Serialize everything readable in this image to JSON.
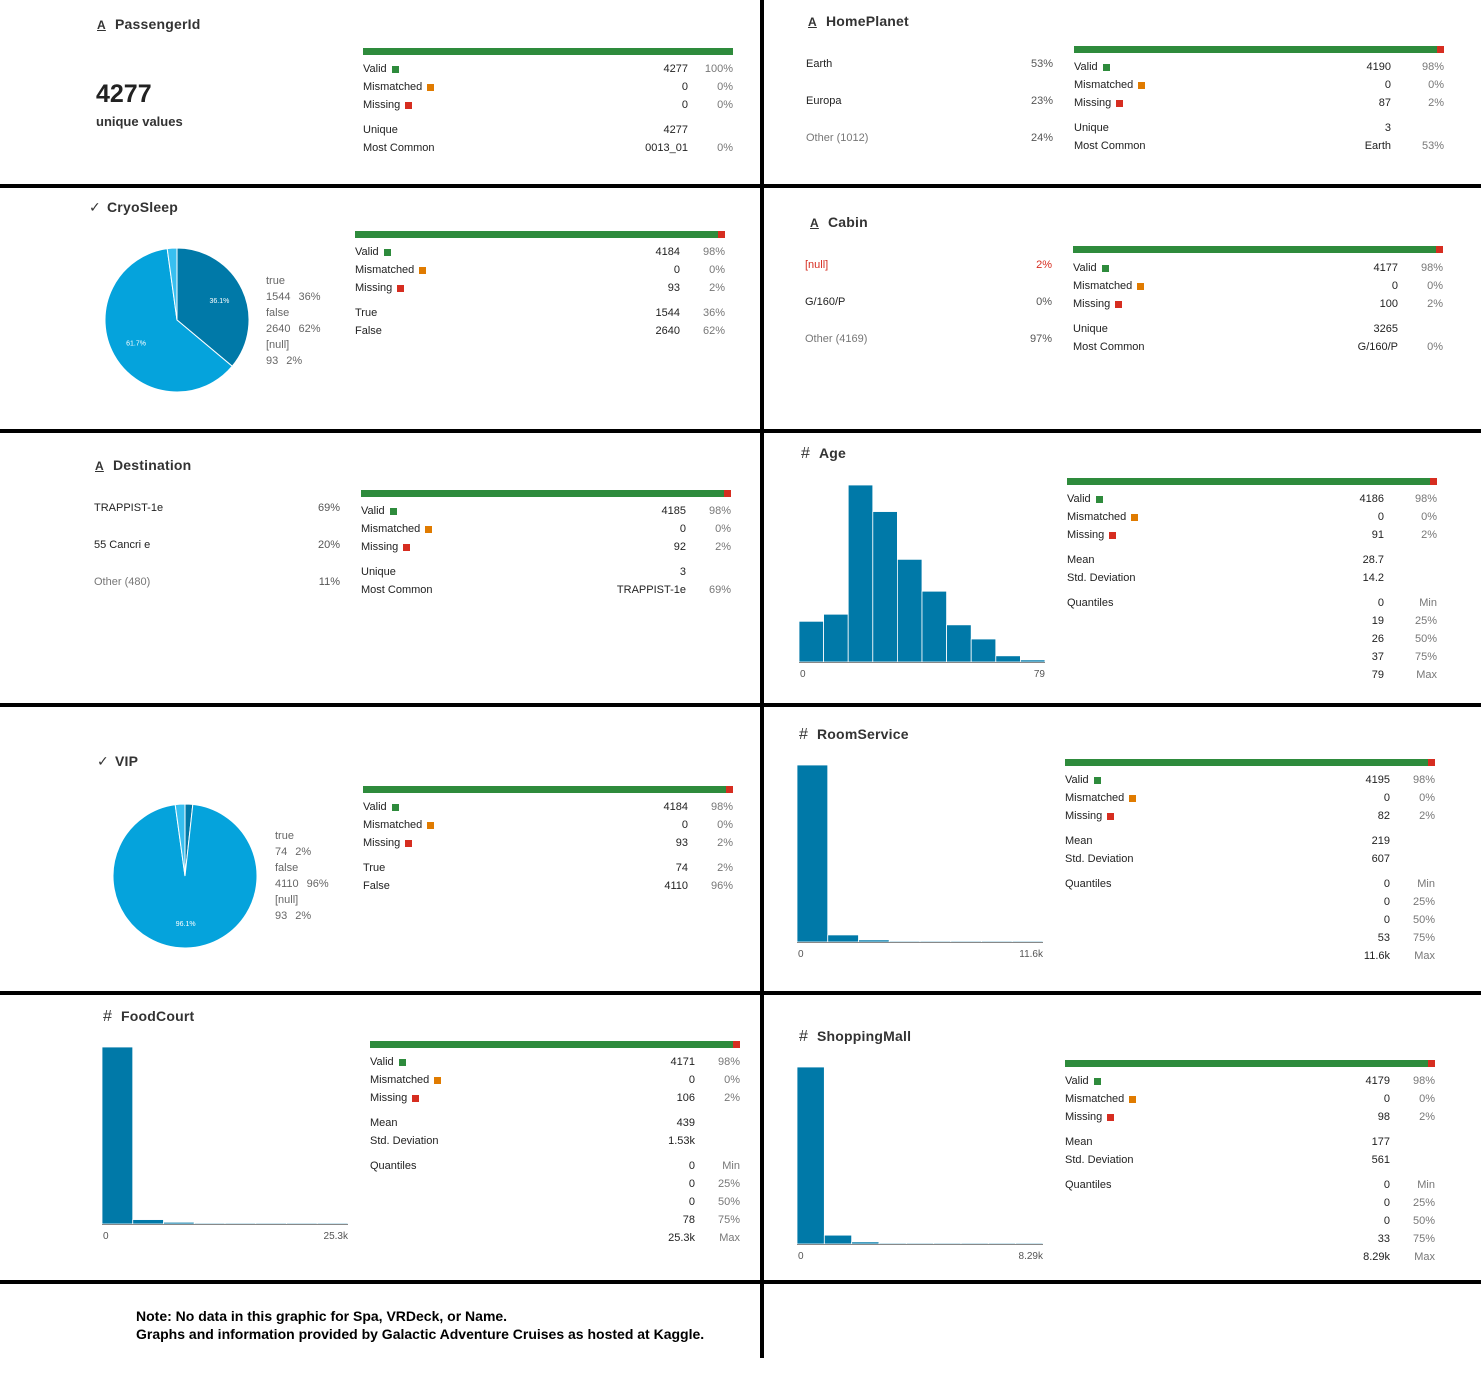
{
  "note": {
    "line1": "Note: No data in this graphic for Spa, VRDeck, or Name.",
    "line2": "Graphs and information provided by Galactic Adventure Cruises as hosted at Kaggle."
  },
  "colors": {
    "valid": "#2e8b3c",
    "mismatched": "#e07b00",
    "missing": "#d62d20",
    "bar": "#0079a8",
    "pie_main": "#05a3dc",
    "pie_dark": "#0079a8",
    "pie_null": "#38bff0"
  },
  "passengerid": {
    "title": "PassengerId",
    "icon": "string-icon",
    "unique_count": "4277",
    "unique_label": "unique values",
    "valid": {
      "label": "Valid",
      "value": "4277",
      "pct": "100%"
    },
    "mismatched": {
      "label": "Mismatched",
      "value": "0",
      "pct": "0%"
    },
    "missing": {
      "label": "Missing",
      "value": "0",
      "pct": "0%"
    },
    "unique": {
      "label": "Unique",
      "value": "4277"
    },
    "most_common": {
      "label": "Most Common",
      "value": "0013_01",
      "pct": "0%"
    },
    "missing_fraction": 0
  },
  "homeplanet": {
    "title": "HomePlanet",
    "icon": "string-icon",
    "categories": [
      {
        "label": "Earth",
        "pct": "53%"
      },
      {
        "label": "Europa",
        "pct": "23%"
      },
      {
        "label": "Other (1012)",
        "pct": "24%"
      }
    ],
    "valid": {
      "label": "Valid",
      "value": "4190",
      "pct": "98%"
    },
    "mismatched": {
      "label": "Mismatched",
      "value": "0",
      "pct": "0%"
    },
    "missing": {
      "label": "Missing",
      "value": "87",
      "pct": "2%"
    },
    "unique": {
      "label": "Unique",
      "value": "3"
    },
    "most_common": {
      "label": "Most Common",
      "value": "Earth",
      "pct": "53%"
    },
    "missing_fraction": 0.02
  },
  "cryosleep": {
    "title": "CryoSleep",
    "icon": "boolean-icon",
    "legend": [
      {
        "label": "true",
        "count": "1544",
        "pct": "36%"
      },
      {
        "label": "false",
        "count": "2640",
        "pct": "62%"
      },
      {
        "label": "[null]",
        "count": "93",
        "pct": "2%"
      }
    ],
    "valid": {
      "label": "Valid",
      "value": "4184",
      "pct": "98%"
    },
    "mismatched": {
      "label": "Mismatched",
      "value": "0",
      "pct": "0%"
    },
    "missing": {
      "label": "Missing",
      "value": "93",
      "pct": "2%"
    },
    "true_row": {
      "label": "True",
      "value": "1544",
      "pct": "36%"
    },
    "false_row": {
      "label": "False",
      "value": "2640",
      "pct": "62%"
    },
    "missing_fraction": 0.02
  },
  "cabin": {
    "title": "Cabin",
    "icon": "string-icon",
    "categories": [
      {
        "label": "[null]",
        "pct": "2%"
      },
      {
        "label": "G/160/P",
        "pct": "0%"
      },
      {
        "label": "Other (4169)",
        "pct": "97%"
      }
    ],
    "valid": {
      "label": "Valid",
      "value": "4177",
      "pct": "98%"
    },
    "mismatched": {
      "label": "Mismatched",
      "value": "0",
      "pct": "0%"
    },
    "missing": {
      "label": "Missing",
      "value": "100",
      "pct": "2%"
    },
    "unique": {
      "label": "Unique",
      "value": "3265"
    },
    "most_common": {
      "label": "Most Common",
      "value": "G/160/P",
      "pct": "0%"
    },
    "missing_fraction": 0.02
  },
  "destination": {
    "title": "Destination",
    "icon": "string-icon",
    "categories": [
      {
        "label": "TRAPPIST-1e",
        "pct": "69%"
      },
      {
        "label": "55 Cancri e",
        "pct": "20%"
      },
      {
        "label": "Other (480)",
        "pct": "11%"
      }
    ],
    "valid": {
      "label": "Valid",
      "value": "4185",
      "pct": "98%"
    },
    "mismatched": {
      "label": "Mismatched",
      "value": "0",
      "pct": "0%"
    },
    "missing": {
      "label": "Missing",
      "value": "92",
      "pct": "2%"
    },
    "unique": {
      "label": "Unique",
      "value": "3"
    },
    "most_common": {
      "label": "Most Common",
      "value": "TRAPPIST-1e",
      "pct": "69%"
    },
    "missing_fraction": 0.02
  },
  "age": {
    "title": "Age",
    "icon": "number-icon",
    "valid": {
      "label": "Valid",
      "value": "4186",
      "pct": "98%"
    },
    "mismatched": {
      "label": "Mismatched",
      "value": "0",
      "pct": "0%"
    },
    "missing": {
      "label": "Missing",
      "value": "91",
      "pct": "2%"
    },
    "mean": {
      "label": "Mean",
      "value": "28.7"
    },
    "std": {
      "label": "Std. Deviation",
      "value": "14.2"
    },
    "quantiles_label": "Quantiles",
    "quantiles": [
      {
        "value": "0",
        "label": "Min"
      },
      {
        "value": "19",
        "label": "25%"
      },
      {
        "value": "26",
        "label": "50%"
      },
      {
        "value": "37",
        "label": "75%"
      },
      {
        "value": "79",
        "label": "Max"
      }
    ],
    "missing_fraction": 0.02
  },
  "vip": {
    "title": "VIP",
    "icon": "boolean-icon",
    "legend": [
      {
        "label": "true",
        "count": "74",
        "pct": "2%"
      },
      {
        "label": "false",
        "count": "4110",
        "pct": "96%"
      },
      {
        "label": "[null]",
        "count": "93",
        "pct": "2%"
      }
    ],
    "valid": {
      "label": "Valid",
      "value": "4184",
      "pct": "98%"
    },
    "mismatched": {
      "label": "Mismatched",
      "value": "0",
      "pct": "0%"
    },
    "missing": {
      "label": "Missing",
      "value": "93",
      "pct": "2%"
    },
    "true_row": {
      "label": "True",
      "value": "74",
      "pct": "2%"
    },
    "false_row": {
      "label": "False",
      "value": "4110",
      "pct": "96%"
    },
    "missing_fraction": 0.02
  },
  "roomservice": {
    "title": "RoomService",
    "icon": "number-icon",
    "valid": {
      "label": "Valid",
      "value": "4195",
      "pct": "98%"
    },
    "mismatched": {
      "label": "Mismatched",
      "value": "0",
      "pct": "0%"
    },
    "missing": {
      "label": "Missing",
      "value": "82",
      "pct": "2%"
    },
    "mean": {
      "label": "Mean",
      "value": "219"
    },
    "std": {
      "label": "Std. Deviation",
      "value": "607"
    },
    "quantiles_label": "Quantiles",
    "quantiles": [
      {
        "value": "0",
        "label": "Min"
      },
      {
        "value": "0",
        "label": "25%"
      },
      {
        "value": "0",
        "label": "50%"
      },
      {
        "value": "53",
        "label": "75%"
      },
      {
        "value": "11.6k",
        "label": "Max"
      }
    ],
    "missing_fraction": 0.02
  },
  "foodcourt": {
    "title": "FoodCourt",
    "icon": "number-icon",
    "valid": {
      "label": "Valid",
      "value": "4171",
      "pct": "98%"
    },
    "mismatched": {
      "label": "Mismatched",
      "value": "0",
      "pct": "0%"
    },
    "missing": {
      "label": "Missing",
      "value": "106",
      "pct": "2%"
    },
    "mean": {
      "label": "Mean",
      "value": "439"
    },
    "std": {
      "label": "Std. Deviation",
      "value": "1.53k"
    },
    "quantiles_label": "Quantiles",
    "quantiles": [
      {
        "value": "0",
        "label": "Min"
      },
      {
        "value": "0",
        "label": "25%"
      },
      {
        "value": "0",
        "label": "50%"
      },
      {
        "value": "78",
        "label": "75%"
      },
      {
        "value": "25.3k",
        "label": "Max"
      }
    ],
    "missing_fraction": 0.02
  },
  "shoppingmall": {
    "title": "ShoppingMall",
    "icon": "number-icon",
    "valid": {
      "label": "Valid",
      "value": "4179",
      "pct": "98%"
    },
    "mismatched": {
      "label": "Mismatched",
      "value": "0",
      "pct": "0%"
    },
    "missing": {
      "label": "Missing",
      "value": "98",
      "pct": "2%"
    },
    "mean": {
      "label": "Mean",
      "value": "177"
    },
    "std": {
      "label": "Std. Deviation",
      "value": "561"
    },
    "quantiles_label": "Quantiles",
    "quantiles": [
      {
        "value": "0",
        "label": "Min"
      },
      {
        "value": "0",
        "label": "25%"
      },
      {
        "value": "0",
        "label": "50%"
      },
      {
        "value": "33",
        "label": "75%"
      },
      {
        "value": "8.29k",
        "label": "Max"
      }
    ],
    "missing_fraction": 0.02
  },
  "chart_data": [
    {
      "type": "pie",
      "id": "cryosleep",
      "categories": [
        "true",
        "false",
        "[null]"
      ],
      "values": [
        1544,
        2640,
        93
      ],
      "labels": [
        "36.1%",
        "61.7%",
        ""
      ]
    },
    {
      "type": "pie",
      "id": "vip",
      "categories": [
        "true",
        "false",
        "[null]"
      ],
      "values": [
        74,
        4110,
        93
      ],
      "labels": [
        "",
        "96.1%",
        ""
      ]
    },
    {
      "type": "bar",
      "id": "age",
      "x_range": [
        0,
        79
      ],
      "tick_labels": [
        "0",
        "79"
      ],
      "values": [
        0.23,
        0.27,
        1.0,
        0.85,
        0.58,
        0.4,
        0.21,
        0.13,
        0.035,
        0.012
      ]
    },
    {
      "type": "bar",
      "id": "roomservice",
      "x_range": [
        0,
        11600
      ],
      "tick_labels": [
        "0",
        "11.6k"
      ],
      "values": [
        1.0,
        0.04,
        0.012,
        0.004,
        0.003,
        0.002,
        0.002,
        0.001
      ]
    },
    {
      "type": "bar",
      "id": "foodcourt",
      "x_range": [
        0,
        25300
      ],
      "tick_labels": [
        "0",
        "25.3k"
      ],
      "values": [
        1.0,
        0.025,
        0.01,
        0.004,
        0.002,
        0.002,
        0.001,
        0.001
      ]
    },
    {
      "type": "bar",
      "id": "shoppingmall",
      "x_range": [
        0,
        8290
      ],
      "tick_labels": [
        "0",
        "8.29k"
      ],
      "values": [
        1.0,
        0.05,
        0.012,
        0.004,
        0.002,
        0.002,
        0.001,
        0.001,
        0.001
      ]
    }
  ]
}
